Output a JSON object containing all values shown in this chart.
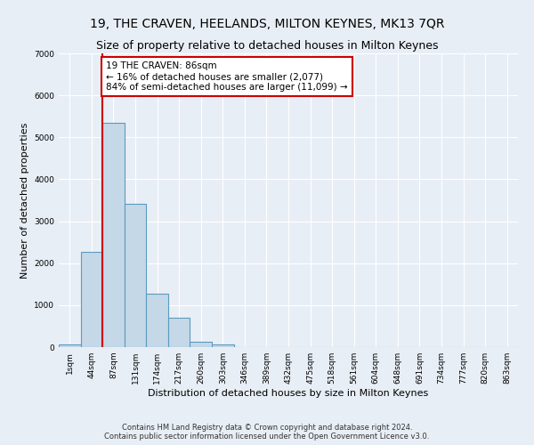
{
  "title1": "19, THE CRAVEN, HEELANDS, MILTON KEYNES, MK13 7QR",
  "title2": "Size of property relative to detached houses in Milton Keynes",
  "xlabel": "Distribution of detached houses by size in Milton Keynes",
  "ylabel": "Number of detached properties",
  "footnote": "Contains HM Land Registry data © Crown copyright and database right 2024.\nContains public sector information licensed under the Open Government Licence v3.0.",
  "bar_labels": [
    "1sqm",
    "44sqm",
    "87sqm",
    "131sqm",
    "174sqm",
    "217sqm",
    "260sqm",
    "303sqm",
    "346sqm",
    "389sqm",
    "432sqm",
    "475sqm",
    "518sqm",
    "561sqm",
    "604sqm",
    "648sqm",
    "691sqm",
    "734sqm",
    "777sqm",
    "820sqm",
    "863sqm"
  ],
  "bar_values": [
    60,
    2280,
    5350,
    3420,
    1280,
    700,
    130,
    60,
    10,
    5,
    3,
    2,
    1,
    0,
    0,
    0,
    0,
    0,
    0,
    0,
    0
  ],
  "bar_color": "#c5d8e8",
  "bar_edge_color": "#5a9abf",
  "annotation_box_text": "19 THE CRAVEN: 86sqm\n← 16% of detached houses are smaller (2,077)\n84% of semi-detached houses are larger (11,099) →",
  "vline_color": "#cc0000",
  "vline_x_index": 1.5,
  "box_color": "#ffffff",
  "box_edge_color": "#cc0000",
  "ylim": [
    0,
    7000
  ],
  "yticks": [
    0,
    1000,
    2000,
    3000,
    4000,
    5000,
    6000,
    7000
  ],
  "background_color": "#e8eef5",
  "grid_color": "#ffffff",
  "title_fontsize": 10,
  "subtitle_fontsize": 9,
  "axis_label_fontsize": 8,
  "tick_fontsize": 6.5,
  "annotation_fontsize": 7.5
}
